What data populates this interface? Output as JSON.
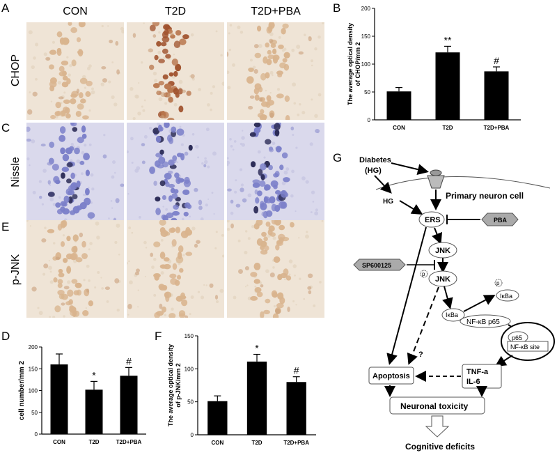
{
  "panels": {
    "A": "A",
    "B": "B",
    "C": "C",
    "D": "D",
    "E": "E",
    "F": "F",
    "G": "G"
  },
  "columns": [
    "CON",
    "T2D",
    "T2D+PBA"
  ],
  "rows": [
    "CHOP",
    "Nissle",
    "p-JNK"
  ],
  "stain_colors": {
    "dab_light": "#d9b48e",
    "dab_dark": "#a0522d",
    "nissl": "#7b7fc9",
    "background": "#efe4d6",
    "nissl_bg": "#dad9ec"
  },
  "chart_data": [
    {
      "panel": "B",
      "type": "bar",
      "categories": [
        "CON",
        "T2D",
        "T2D+PBA"
      ],
      "values": [
        51,
        121,
        87
      ],
      "errors": [
        7,
        11,
        8
      ],
      "significance": [
        "",
        "**",
        "#"
      ],
      "ylabel": "The average optical density of CHOP/mm 2",
      "ylim": [
        0,
        200
      ],
      "yticks": [
        0,
        50,
        100,
        150,
        200
      ]
    },
    {
      "panel": "D",
      "type": "bar",
      "categories": [
        "CON",
        "T2D",
        "T2D+PBA"
      ],
      "values": [
        160,
        102,
        134
      ],
      "errors": [
        24,
        19,
        19
      ],
      "significance": [
        "",
        "*",
        "#"
      ],
      "ylabel": "cell number/mm 2",
      "ylim": [
        0,
        200
      ],
      "yticks": [
        0,
        50,
        100,
        150,
        200
      ]
    },
    {
      "panel": "F",
      "type": "bar",
      "categories": [
        "CON",
        "T2D",
        "T2D+PBA"
      ],
      "values": [
        51,
        111,
        80
      ],
      "errors": [
        8,
        11,
        8
      ],
      "significance": [
        "",
        "*",
        "#"
      ],
      "ylabel": "The average optical density of p-JNK/mm 2",
      "ylim": [
        0,
        150
      ],
      "yticks": [
        0,
        50,
        100,
        150
      ]
    }
  ],
  "diagram": {
    "diabetes": "Diabetes",
    "hg_paren": "(HG)",
    "hg": "HG",
    "cell": "Primary neuron cell",
    "ers": "ERS",
    "pba": "PBA",
    "jnk": "JNK",
    "jnk2": "JNK",
    "sp": "SP600125",
    "p": "p",
    "ikba": "IκBa",
    "nfkb_p65": "NF-κB p65",
    "p65": "p65",
    "nfkb_site": "NF-κB site",
    "q": "?",
    "apoptosis": "Apoptosis",
    "tnf": "TNF-a",
    "il6": "IL-6",
    "toxicity": "Neuronal toxicity",
    "cognitive": "Cognitive deficits"
  }
}
